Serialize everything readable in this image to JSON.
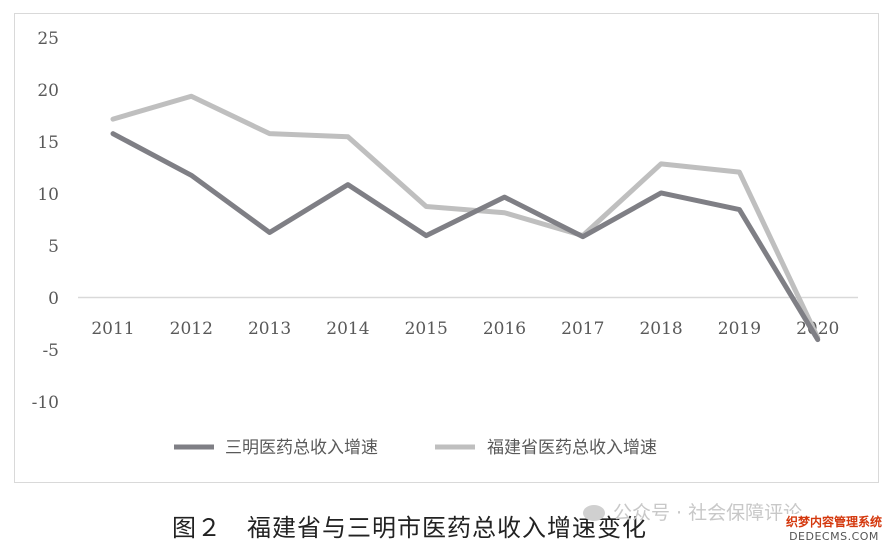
{
  "chart_data": {
    "type": "line",
    "categories": [
      "2011",
      "2012",
      "2013",
      "2014",
      "2015",
      "2016",
      "2017",
      "2018",
      "2019",
      "2020"
    ],
    "ylim": [
      -10,
      25
    ],
    "yticks": [
      "25",
      "20",
      "15",
      "10",
      "5",
      "0",
      "-5",
      "-10"
    ],
    "grid": false,
    "legend_position": "bottom",
    "series": [
      {
        "name": "三明医药总收入增速",
        "color": "#7f7f85",
        "values": [
          15.8,
          11.8,
          6.3,
          10.9,
          6.0,
          9.7,
          5.9,
          10.1,
          8.5,
          -4.0
        ]
      },
      {
        "name": "福建省医药总收入增速",
        "color": "#bfbfbf",
        "values": [
          17.2,
          19.4,
          15.8,
          15.5,
          8.8,
          8.2,
          6.0,
          12.9,
          12.1,
          -3.8
        ]
      }
    ]
  },
  "caption": "图２　福建省与三明市医药总收入增速变化",
  "watermark": "公众号 · 社会保障评论",
  "badge": {
    "line1": "织梦内容管理系统",
    "line2": "DEDECMS.COM"
  }
}
